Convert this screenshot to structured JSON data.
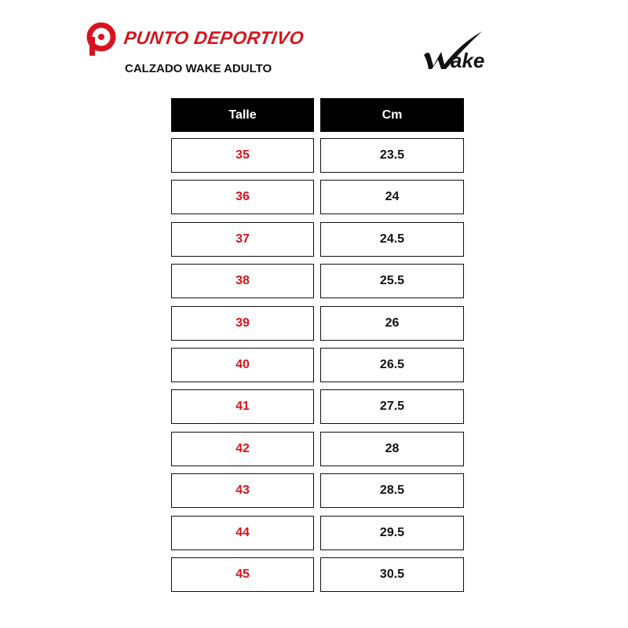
{
  "brand": {
    "name": "PUNTO DEPORTIVO",
    "color": "#d7141d",
    "logo_icon": "punto-deportivo-p-logo"
  },
  "subtitle": "CALZADO WAKE ADULTO",
  "wake_logo": {
    "text": "Wake"
  },
  "table": {
    "headers": [
      "Talle",
      "Cm"
    ],
    "rows": [
      {
        "talle": "35",
        "cm": "23.5"
      },
      {
        "talle": "36",
        "cm": "24"
      },
      {
        "talle": "37",
        "cm": "24.5"
      },
      {
        "talle": "38",
        "cm": "25.5"
      },
      {
        "talle": "39",
        "cm": "26"
      },
      {
        "talle": "40",
        "cm": "26.5"
      },
      {
        "talle": "41",
        "cm": "27.5"
      },
      {
        "talle": "42",
        "cm": "28"
      },
      {
        "talle": "43",
        "cm": "28.5"
      },
      {
        "talle": "44",
        "cm": "29.5"
      },
      {
        "talle": "45",
        "cm": "30.5"
      }
    ]
  }
}
